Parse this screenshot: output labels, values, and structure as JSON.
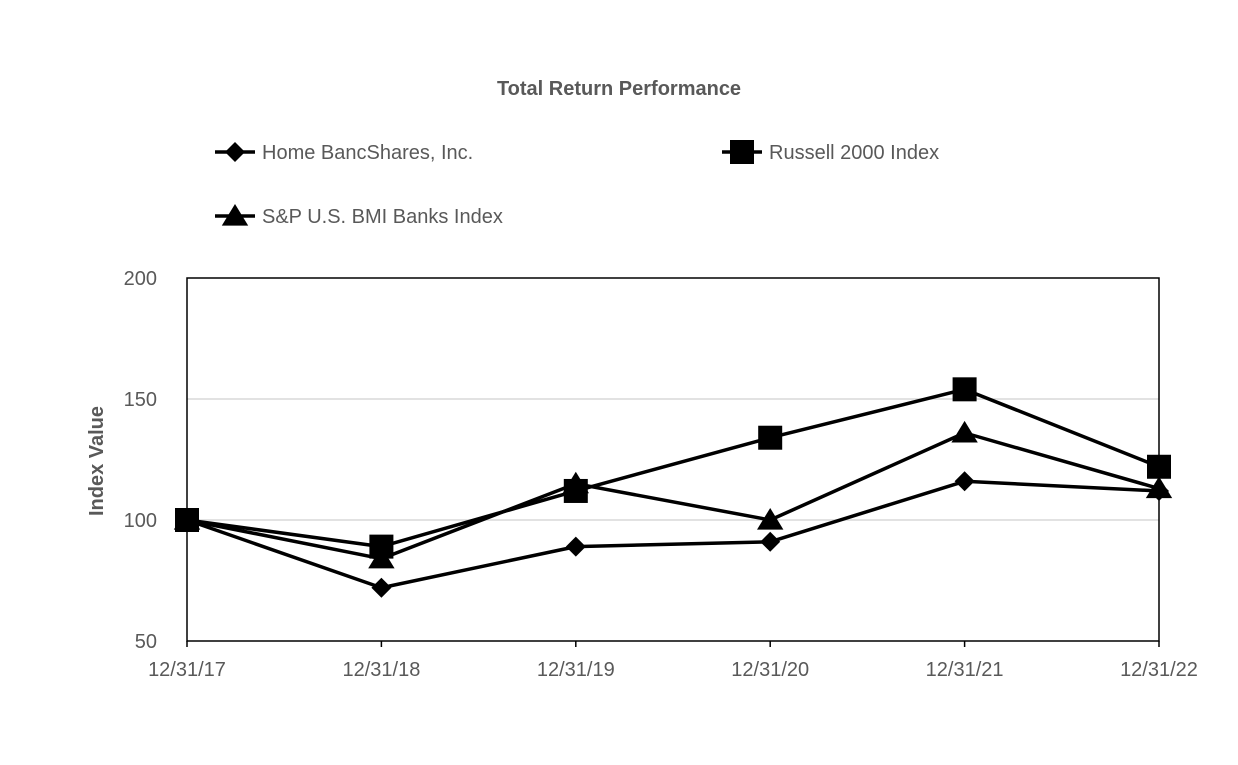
{
  "chart_data": {
    "type": "line",
    "title": "Total Return Performance",
    "xlabel": "",
    "ylabel": "Index Value",
    "categories": [
      "12/31/17",
      "12/31/18",
      "12/31/19",
      "12/31/20",
      "12/31/21",
      "12/31/22"
    ],
    "ylim": [
      50,
      200
    ],
    "yticks": [
      50,
      100,
      150,
      200
    ],
    "grid": true,
    "legend_position": "top",
    "series": [
      {
        "name": "Home BancShares, Inc.",
        "marker": "diamond",
        "color": "#000000",
        "values": [
          100,
          72,
          89,
          91,
          116,
          112
        ]
      },
      {
        "name": "Russell 2000 Index",
        "marker": "square",
        "color": "#000000",
        "values": [
          100,
          89,
          112,
          134,
          154,
          122
        ]
      },
      {
        "name": "S&P U.S. BMI Banks Index",
        "marker": "triangle",
        "color": "#000000",
        "values": [
          100,
          84,
          115,
          100,
          136,
          113
        ]
      }
    ]
  }
}
